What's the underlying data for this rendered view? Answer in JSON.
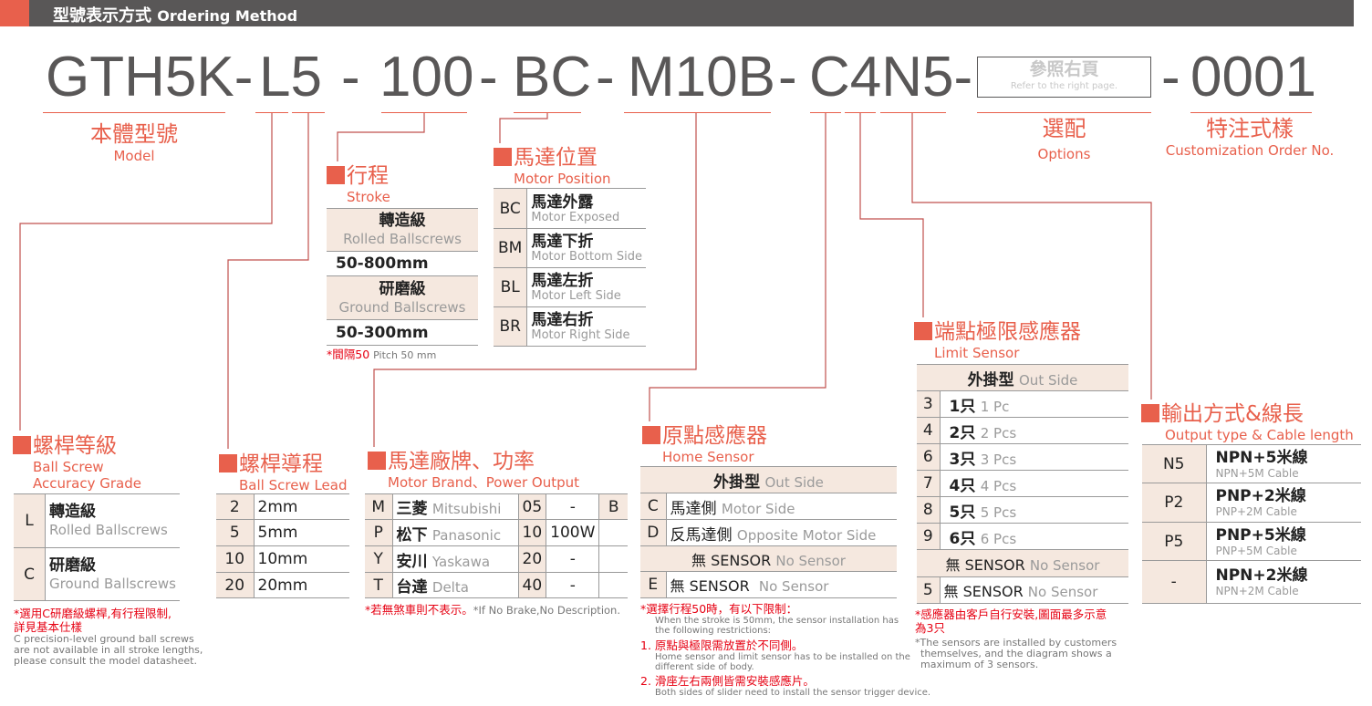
{
  "header": {
    "title_zh": "型號表示方式",
    "title_en": "Ordering Method"
  },
  "code": {
    "model": "GTH5K-",
    "lead": "L5",
    "d1": "-",
    "stroke": "100",
    "d2": "-",
    "position": "BC",
    "d3": "-",
    "motor": "M10B",
    "d4": "-",
    "sensor": "C4N5-",
    "options_zh": "參照右頁",
    "options_en": "Refer to the right page.",
    "d5": "-",
    "custom": "0001"
  },
  "labels": {
    "model_zh": "本體型號",
    "model_en": "Model",
    "options_zh": "選配",
    "options_en": "Options",
    "custom_zh": "特注式樣",
    "custom_en": "Customization Order No."
  },
  "ball_screw": {
    "title_zh": "螺桿等級",
    "title_en1": "Ball Screw",
    "title_en2": "Accuracy Grade",
    "rows": [
      {
        "k": "L",
        "zh": "轉造級",
        "en": "Rolled Ballscrews"
      },
      {
        "k": "C",
        "zh": "研磨級",
        "en": "Ground Ballscrews"
      }
    ],
    "note_zh1": "*選用C研磨級螺桿,有行程限制,",
    "note_zh2": "詳見基本仕樣",
    "note_en1": "C precision-level ground ball screws",
    "note_en2": "are not available in all stroke lengths,",
    "note_en3": "please consult the model datasheet."
  },
  "lead": {
    "title_zh": "螺桿導程",
    "title_en": "Ball Screw Lead",
    "rows": [
      {
        "k": "2",
        "v": "2mm"
      },
      {
        "k": "5",
        "v": "5mm"
      },
      {
        "k": "10",
        "v": "10mm"
      },
      {
        "k": "20",
        "v": "20mm"
      }
    ]
  },
  "stroke": {
    "title_zh": "行程",
    "title_en": "Stroke",
    "rolled_zh": "轉造級",
    "rolled_en": "Rolled Ballscrews",
    "rolled_range": "50-800mm",
    "ground_zh": "研磨級",
    "ground_en": "Ground Ballscrews",
    "ground_range": "50-300mm",
    "note_zh": "*間隔50",
    "note_en": "Pitch 50 mm"
  },
  "position": {
    "title_zh": "馬達位置",
    "title_en": "Motor Position",
    "rows": [
      {
        "k": "BC",
        "zh": "馬達外露",
        "en": "Motor Exposed"
      },
      {
        "k": "BM",
        "zh": "馬達下折",
        "en": "Motor Bottom Side"
      },
      {
        "k": "BL",
        "zh": "馬達左折",
        "en": "Motor Left Side"
      },
      {
        "k": "BR",
        "zh": "馬達右折",
        "en": "Motor Right Side"
      }
    ]
  },
  "motor": {
    "title_zh": "馬達廠牌、功率",
    "title_en": "Motor Brand、Power Output",
    "rows": [
      {
        "k": "M",
        "zh": "三菱",
        "en": "Mitsubishi",
        "c": "05",
        "p": "-",
        "b": "B"
      },
      {
        "k": "P",
        "zh": "松下",
        "en": "Panasonic",
        "c": "10",
        "p": "100W",
        "b": ""
      },
      {
        "k": "Y",
        "zh": "安川",
        "en": "Yaskawa",
        "c": "20",
        "p": "-",
        "b": ""
      },
      {
        "k": "T",
        "zh": "台達",
        "en": "Delta",
        "c": "40",
        "p": "-",
        "b": ""
      }
    ],
    "note_zh": "*若無煞車則不表示。",
    "note_en": "*If No Brake,No Description."
  },
  "home": {
    "title_zh": "原點感應器",
    "title_en": "Home Sensor",
    "out_zh": "外掛型",
    "out_en": "Out Side",
    "rows": [
      {
        "k": "C",
        "zh": "馬達側",
        "en": "Motor Side"
      },
      {
        "k": "D",
        "zh": "反馬達側",
        "en": "Opposite Motor Side"
      }
    ],
    "none_zh": "無 SENSOR",
    "none_en": "No Sensor",
    "e_k": "E",
    "e_zh": "無  SENSOR",
    "e_en": "No Sensor",
    "note_zh": "*選擇行程50時，有以下限制：",
    "note_en1": "When the stroke is 50mm, the sensor installation has",
    "note_en2": "the following restrictions:",
    "r1_zh": "1. 原點與極限需放置於不同側。",
    "r1_en1": "Home sensor and limit sensor has to be installed on the",
    "r1_en2": "different side of body.",
    "r2_zh": "2. 滑座左右兩側皆需安裝感應片。",
    "r2_en": "Both sides of slider need to install the sensor trigger device."
  },
  "limit": {
    "title_zh": "端點極限感應器",
    "title_en": "Limit Sensor",
    "out_zh": "外掛型",
    "out_en": "Out Side",
    "rows": [
      {
        "k": "3",
        "zh": "1只",
        "en": "1 Pc"
      },
      {
        "k": "4",
        "zh": "2只",
        "en": "2 Pcs"
      },
      {
        "k": "6",
        "zh": "3只",
        "en": "3 Pcs"
      },
      {
        "k": "7",
        "zh": "4只",
        "en": "4 Pcs"
      },
      {
        "k": "8",
        "zh": "5只",
        "en": "5 Pcs"
      },
      {
        "k": "9",
        "zh": "6只",
        "en": "6 Pcs"
      }
    ],
    "none_zh": "無 SENSOR",
    "none_en": "No Sensor",
    "five_k": "5",
    "five_zh": "無 SENSOR",
    "five_en": "No Sensor",
    "note_zh1": "*感應器由客戶自行安裝,圖面最多示意",
    "note_zh2": "為3只",
    "note_en1": "*The sensors are installed by customers",
    "note_en2": "themselves, and the diagram shows a",
    "note_en3": "maximum of 3 sensors."
  },
  "output": {
    "title_zh": "輸出方式&線長",
    "title_en": "Output type & Cable length",
    "rows": [
      {
        "k": "N5",
        "zh": "NPN+5米線",
        "en": "NPN+5M Cable"
      },
      {
        "k": "P2",
        "zh": "PNP+2米線",
        "en": "PNP+2M Cable"
      },
      {
        "k": "P5",
        "zh": "PNP+5米線",
        "en": "PNP+5M Cable"
      },
      {
        "k": "-",
        "zh": "NPN+2米線",
        "en": "NPN+2M Cable"
      }
    ]
  },
  "colors": {
    "accent": "#e8604c",
    "header_bg": "#595757",
    "table_key_bg": "#f5e8df",
    "note_red": "#e60012"
  }
}
